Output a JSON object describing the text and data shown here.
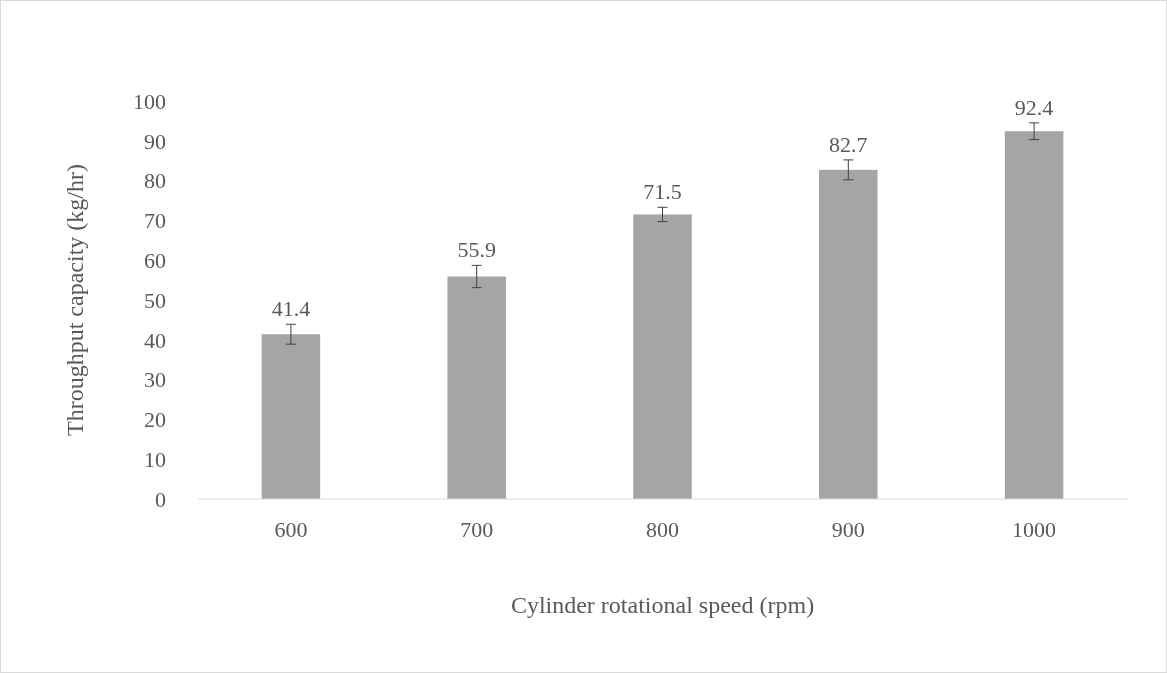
{
  "chart_data": {
    "type": "bar",
    "xlabel": "Cylinder rotational speed (rpm)",
    "ylabel": "Throughput capacity (kg/hr)",
    "categories": [
      "600",
      "700",
      "800",
      "900",
      "1000"
    ],
    "values": [
      41.4,
      55.9,
      71.5,
      82.7,
      92.4
    ],
    "errors": [
      2.5,
      2.8,
      1.8,
      2.5,
      2.1
    ],
    "color": "#a5a5a5",
    "data_labels": true,
    "ylim": [
      0,
      100
    ],
    "yticks": [
      0,
      10,
      20,
      30,
      40,
      50,
      60,
      70,
      80,
      90,
      100
    ],
    "grid": false
  }
}
